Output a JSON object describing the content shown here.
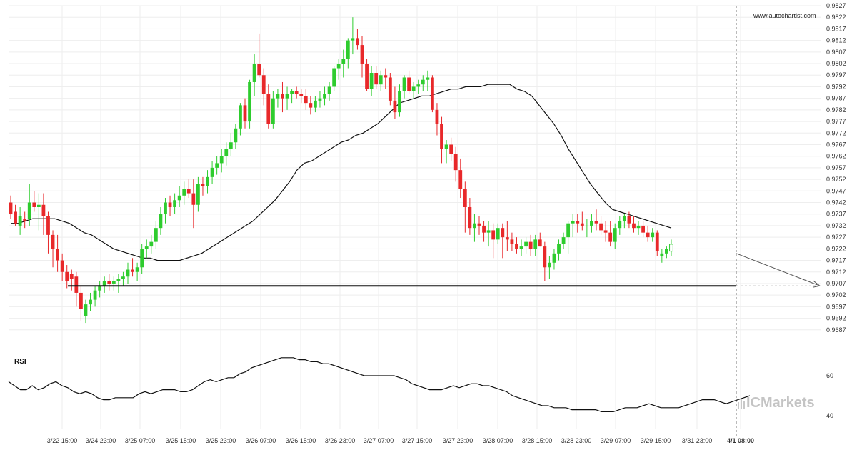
{
  "chart_data": [
    {
      "type": "candlestick",
      "watermark_url": "www.autochartist.com",
      "ylim": [
        0.9682,
        0.9827
      ],
      "y_ticks": [
        "0.9827",
        "0.9822",
        "0.9817",
        "0.9812",
        "0.9807",
        "0.9802",
        "0.9797",
        "0.9792",
        "0.9787",
        "0.9782",
        "0.9777",
        "0.9772",
        "0.9767",
        "0.9762",
        "0.9757",
        "0.9752",
        "0.9747",
        "0.9742",
        "0.9737",
        "0.9732",
        "0.9727",
        "0.9722",
        "0.9717",
        "0.9712",
        "0.9707",
        "0.9702",
        "0.9697",
        "0.9692",
        "0.9687"
      ],
      "x_ticks": [
        "3/22 15:00",
        "3/24 23:00",
        "3/25 07:00",
        "3/25 15:00",
        "3/25 23:00",
        "3/26 07:00",
        "3/26 15:00",
        "3/26 23:00",
        "3/27 07:00",
        "3/27 15:00",
        "3/27 23:00",
        "3/28 07:00",
        "3/28 15:00",
        "3/28 23:00",
        "3/29 07:00",
        "3/29 15:00",
        "3/31 23:00",
        "4/1 08:00"
      ],
      "highlighted_x_tick": "4/1 08:00",
      "colors": {
        "up": "#2ecc2e",
        "down": "#e8282a",
        "moving_average": "#111111",
        "support": "#111111",
        "forecast_line": "#999999"
      },
      "support_level": 0.9706,
      "ohlc": [
        [
          0.9742,
          0.9745,
          0.9735,
          0.9737
        ],
        [
          0.9738,
          0.9741,
          0.9732,
          0.9733
        ],
        [
          0.9732,
          0.974,
          0.9728,
          0.9736
        ],
        [
          0.9735,
          0.9738,
          0.9731,
          0.9734
        ],
        [
          0.9735,
          0.975,
          0.9732,
          0.9742
        ],
        [
          0.9742,
          0.9747,
          0.9738,
          0.974
        ],
        [
          0.974,
          0.9746,
          0.973,
          0.9741
        ],
        [
          0.9741,
          0.9746,
          0.9728,
          0.9736
        ],
        [
          0.9736,
          0.9738,
          0.972,
          0.9728
        ],
        [
          0.9728,
          0.973,
          0.9714,
          0.9722
        ],
        [
          0.9722,
          0.9728,
          0.9712,
          0.9717
        ],
        [
          0.9717,
          0.972,
          0.9708,
          0.9712
        ],
        [
          0.9712,
          0.9715,
          0.9705,
          0.9708
        ],
        [
          0.9711,
          0.9713,
          0.9704,
          0.9709
        ],
        [
          0.971,
          0.9712,
          0.9697,
          0.9703
        ],
        [
          0.9703,
          0.9706,
          0.9691,
          0.9696
        ],
        [
          0.9693,
          0.97,
          0.969,
          0.9698
        ],
        [
          0.9698,
          0.9703,
          0.9695,
          0.97
        ],
        [
          0.97,
          0.9706,
          0.9697,
          0.9704
        ],
        [
          0.9704,
          0.9708,
          0.9701,
          0.9706
        ],
        [
          0.9706,
          0.971,
          0.9703,
          0.9708
        ],
        [
          0.9708,
          0.9711,
          0.9704,
          0.9707
        ],
        [
          0.9707,
          0.971,
          0.9704,
          0.9708
        ],
        [
          0.9708,
          0.9711,
          0.9703,
          0.9709
        ],
        [
          0.9709,
          0.9712,
          0.9706,
          0.971
        ],
        [
          0.971,
          0.9716,
          0.9707,
          0.9713
        ],
        [
          0.9713,
          0.9718,
          0.971,
          0.9712
        ],
        [
          0.9712,
          0.9716,
          0.9708,
          0.9714
        ],
        [
          0.9714,
          0.9724,
          0.9711,
          0.9722
        ],
        [
          0.9722,
          0.9726,
          0.9718,
          0.9723
        ],
        [
          0.9723,
          0.9728,
          0.972,
          0.9725
        ],
        [
          0.9725,
          0.9734,
          0.9722,
          0.9731
        ],
        [
          0.9731,
          0.974,
          0.9728,
          0.9737
        ],
        [
          0.9737,
          0.9744,
          0.9733,
          0.9742
        ],
        [
          0.9742,
          0.9745,
          0.9736,
          0.974
        ],
        [
          0.974,
          0.9746,
          0.9737,
          0.9743
        ],
        [
          0.9743,
          0.9749,
          0.974,
          0.9745
        ],
        [
          0.9745,
          0.9751,
          0.9741,
          0.9748
        ],
        [
          0.9748,
          0.9752,
          0.9744,
          0.9746
        ],
        [
          0.9746,
          0.9752,
          0.9731,
          0.9741
        ],
        [
          0.9741,
          0.9753,
          0.9738,
          0.975
        ],
        [
          0.975,
          0.9753,
          0.9745,
          0.9749
        ],
        [
          0.9749,
          0.9756,
          0.9746,
          0.9753
        ],
        [
          0.9753,
          0.976,
          0.975,
          0.9757
        ],
        [
          0.9757,
          0.9762,
          0.9754,
          0.9759
        ],
        [
          0.9759,
          0.9765,
          0.9755,
          0.9762
        ],
        [
          0.9762,
          0.9768,
          0.9758,
          0.9765
        ],
        [
          0.9765,
          0.9772,
          0.9762,
          0.9768
        ],
        [
          0.9768,
          0.9776,
          0.9765,
          0.9774
        ],
        [
          0.9774,
          0.9785,
          0.9771,
          0.9784
        ],
        [
          0.9784,
          0.9787,
          0.9774,
          0.9777
        ],
        [
          0.9777,
          0.9795,
          0.9774,
          0.9794
        ],
        [
          0.9794,
          0.9806,
          0.9788,
          0.9802
        ],
        [
          0.9802,
          0.9815,
          0.9796,
          0.9797
        ],
        [
          0.9797,
          0.98,
          0.9784,
          0.9789
        ],
        [
          0.9789,
          0.9793,
          0.9774,
          0.9776
        ],
        [
          0.9776,
          0.979,
          0.9774,
          0.9787
        ],
        [
          0.9787,
          0.9791,
          0.9783,
          0.9789
        ],
        [
          0.9789,
          0.9794,
          0.9781,
          0.9787
        ],
        [
          0.9787,
          0.9792,
          0.9782,
          0.9789
        ],
        [
          0.9789,
          0.9791,
          0.9785,
          0.979
        ],
        [
          0.979,
          0.9792,
          0.9787,
          0.9789
        ],
        [
          0.9789,
          0.9791,
          0.9785,
          0.9788
        ],
        [
          0.9788,
          0.9791,
          0.9782,
          0.9785
        ],
        [
          0.9785,
          0.9788,
          0.978,
          0.9783
        ],
        [
          0.9783,
          0.9788,
          0.9781,
          0.9786
        ],
        [
          0.9786,
          0.979,
          0.9783,
          0.9787
        ],
        [
          0.9787,
          0.9792,
          0.9784,
          0.9789
        ],
        [
          0.9789,
          0.9794,
          0.9786,
          0.9792
        ],
        [
          0.9792,
          0.9801,
          0.979,
          0.98
        ],
        [
          0.98,
          0.9804,
          0.9795,
          0.9802
        ],
        [
          0.9802,
          0.9808,
          0.9796,
          0.9804
        ],
        [
          0.9804,
          0.9813,
          0.98,
          0.9812
        ],
        [
          0.9812,
          0.9822,
          0.9806,
          0.9813
        ],
        [
          0.9813,
          0.9817,
          0.9808,
          0.981
        ],
        [
          0.981,
          0.9814,
          0.9796,
          0.9802
        ],
        [
          0.9802,
          0.9804,
          0.979,
          0.9791
        ],
        [
          0.9791,
          0.9801,
          0.9788,
          0.9798
        ],
        [
          0.9798,
          0.9801,
          0.9791,
          0.9793
        ],
        [
          0.9793,
          0.9799,
          0.979,
          0.9797
        ],
        [
          0.9797,
          0.98,
          0.9791,
          0.9796
        ],
        [
          0.9796,
          0.9798,
          0.9784,
          0.9786
        ],
        [
          0.9786,
          0.9792,
          0.9778,
          0.9781
        ],
        [
          0.9781,
          0.9793,
          0.9779,
          0.979
        ],
        [
          0.979,
          0.9797,
          0.9787,
          0.9796
        ],
        [
          0.9796,
          0.9799,
          0.9789,
          0.979
        ],
        [
          0.979,
          0.9794,
          0.9787,
          0.9792
        ],
        [
          0.9792,
          0.9795,
          0.9789,
          0.9793
        ],
        [
          0.9793,
          0.9797,
          0.979,
          0.9795
        ],
        [
          0.9795,
          0.9799,
          0.979,
          0.9796
        ],
        [
          0.9796,
          0.9797,
          0.9781,
          0.9782
        ],
        [
          0.9782,
          0.9785,
          0.9771,
          0.9776
        ],
        [
          0.9776,
          0.9779,
          0.9759,
          0.9765
        ],
        [
          0.9765,
          0.9769,
          0.9759,
          0.9767
        ],
        [
          0.9767,
          0.977,
          0.976,
          0.9763
        ],
        [
          0.9763,
          0.9766,
          0.9751,
          0.9756
        ],
        [
          0.9756,
          0.9761,
          0.9744,
          0.9748
        ],
        [
          0.9748,
          0.9751,
          0.9729,
          0.974
        ],
        [
          0.974,
          0.9744,
          0.9728,
          0.9731
        ],
        [
          0.9731,
          0.9737,
          0.9725,
          0.9733
        ],
        [
          0.9733,
          0.9736,
          0.9728,
          0.9732
        ],
        [
          0.9732,
          0.9734,
          0.9725,
          0.9729
        ],
        [
          0.9729,
          0.9734,
          0.9723,
          0.973
        ],
        [
          0.973,
          0.9733,
          0.9718,
          0.9726
        ],
        [
          0.9726,
          0.9733,
          0.9724,
          0.9731
        ],
        [
          0.9731,
          0.9733,
          0.9718,
          0.9727
        ],
        [
          0.9727,
          0.9734,
          0.9721,
          0.9726
        ],
        [
          0.9726,
          0.9729,
          0.9721,
          0.9724
        ],
        [
          0.9724,
          0.9727,
          0.972,
          0.9722
        ],
        [
          0.9722,
          0.9726,
          0.9719,
          0.9723
        ],
        [
          0.9723,
          0.9727,
          0.972,
          0.9725
        ],
        [
          0.9725,
          0.9728,
          0.9719,
          0.9722
        ],
        [
          0.9722,
          0.9728,
          0.9719,
          0.9726
        ],
        [
          0.9726,
          0.9729,
          0.9723,
          0.9723
        ],
        [
          0.9723,
          0.9725,
          0.9708,
          0.9714
        ],
        [
          0.9714,
          0.9719,
          0.9709,
          0.9716
        ],
        [
          0.9716,
          0.9722,
          0.9713,
          0.972
        ],
        [
          0.972,
          0.9726,
          0.9717,
          0.9724
        ],
        [
          0.9724,
          0.9729,
          0.9722,
          0.9727
        ],
        [
          0.9727,
          0.9734,
          0.972,
          0.9733
        ],
        [
          0.9733,
          0.9737,
          0.9727,
          0.9734
        ],
        [
          0.9734,
          0.9737,
          0.9729,
          0.9733
        ],
        [
          0.9733,
          0.9738,
          0.973,
          0.9732
        ],
        [
          0.9732,
          0.9735,
          0.9727,
          0.9732
        ],
        [
          0.9732,
          0.9737,
          0.9729,
          0.9734
        ],
        [
          0.9734,
          0.9739,
          0.973,
          0.9733
        ],
        [
          0.9733,
          0.9736,
          0.9728,
          0.973
        ],
        [
          0.973,
          0.9734,
          0.9725,
          0.9729
        ],
        [
          0.9729,
          0.9734,
          0.9723,
          0.9725
        ],
        [
          0.9725,
          0.9733,
          0.9722,
          0.9731
        ],
        [
          0.9731,
          0.9736,
          0.9728,
          0.9734
        ],
        [
          0.9734,
          0.9737,
          0.9731,
          0.9736
        ],
        [
          0.9736,
          0.9738,
          0.9731,
          0.9733
        ],
        [
          0.9733,
          0.9736,
          0.9729,
          0.9731
        ],
        [
          0.9731,
          0.9734,
          0.9728,
          0.9732
        ],
        [
          0.9732,
          0.9734,
          0.9727,
          0.9729
        ],
        [
          0.9729,
          0.9732,
          0.9725,
          0.9727
        ],
        [
          0.9727,
          0.9731,
          0.9725,
          0.9729
        ],
        [
          0.9729,
          0.973,
          0.9719,
          0.9721
        ],
        [
          0.9719,
          0.9722,
          0.9716,
          0.972
        ],
        [
          0.972,
          0.9723,
          0.9718,
          0.9722
        ],
        [
          0.9721,
          0.9726,
          0.9719,
          0.9724
        ]
      ],
      "moving_average": [
        0.9733,
        0.9733,
        0.9734,
        0.9735,
        0.9735,
        0.9735,
        0.9735,
        0.9734,
        0.9733,
        0.9731,
        0.9729,
        0.9728,
        0.9726,
        0.9724,
        0.9722,
        0.9721,
        0.972,
        0.9719,
        0.9718,
        0.9718,
        0.9717,
        0.9717,
        0.9717,
        0.9717,
        0.9718,
        0.9719,
        0.972,
        0.9722,
        0.9724,
        0.9726,
        0.9728,
        0.973,
        0.9732,
        0.9734,
        0.9737,
        0.974,
        0.9743,
        0.9747,
        0.9751,
        0.9756,
        0.9759,
        0.976,
        0.9762,
        0.9764,
        0.9766,
        0.9768,
        0.9769,
        0.9771,
        0.9772,
        0.9774,
        0.9776,
        0.9779,
        0.9782,
        0.9785,
        0.9786,
        0.9787,
        0.9788,
        0.9788,
        0.9789,
        0.979,
        0.9791,
        0.9791,
        0.9792,
        0.9792,
        0.9792,
        0.9793,
        0.9793,
        0.9793,
        0.9793,
        0.9791,
        0.979,
        0.9788,
        0.9784,
        0.978,
        0.9776,
        0.9771,
        0.9765,
        0.976,
        0.9755,
        0.975,
        0.9746,
        0.9742,
        0.9739,
        0.9738,
        0.9737,
        0.9736,
        0.9735,
        0.9734,
        0.9733,
        0.9732,
        0.9731
      ],
      "forecast": {
        "from": 0.972,
        "to": 0.9706
      },
      "rsi": {
        "label": "RSI",
        "levels": [
          "60",
          "40"
        ],
        "ylim": [
          30,
          80
        ],
        "values": [
          57,
          55,
          53,
          53,
          55,
          53,
          54,
          56,
          57,
          55,
          54,
          52,
          51,
          52,
          51,
          49,
          48,
          48,
          49,
          49,
          49,
          49,
          51,
          52,
          51,
          52,
          53,
          53,
          53,
          52,
          52,
          53,
          55,
          57,
          58,
          57,
          58,
          59,
          59,
          61,
          62,
          64,
          65,
          66,
          67,
          68,
          69,
          69,
          69,
          68,
          68,
          67,
          67,
          66,
          66,
          65,
          64,
          63,
          62,
          61,
          60,
          60,
          60,
          60,
          60,
          60,
          59,
          58,
          56,
          55,
          54,
          53,
          53,
          53,
          54,
          55,
          54,
          55,
          56,
          56,
          55,
          55,
          54,
          53,
          52,
          50,
          49,
          48,
          47,
          46,
          45,
          45,
          44,
          44,
          44,
          43,
          43,
          43,
          43,
          43,
          42,
          42,
          42,
          43,
          44,
          44,
          44,
          45,
          46,
          45,
          44,
          44,
          44,
          44,
          45,
          46,
          47,
          48,
          48,
          48,
          47,
          46,
          47,
          48,
          49,
          50
        ]
      }
    }
  ],
  "branding": {
    "logo": "ICMarkets"
  }
}
